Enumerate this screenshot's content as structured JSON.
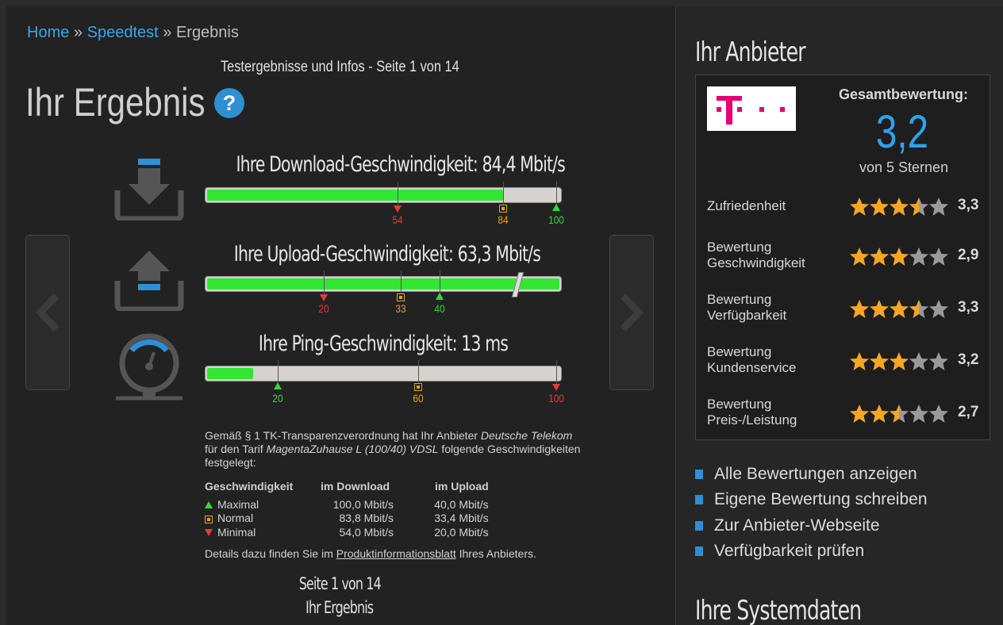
{
  "breadcrumb": {
    "home": "Home",
    "sep1": "»",
    "speedtest": "Speedtest",
    "sep2": "»",
    "current": "Ergebnis"
  },
  "page_info": "Testergebnisse und Infos - Seite 1 von 14",
  "heading": "Ihr Ergebnis",
  "help_label": "?",
  "metrics": {
    "download": {
      "title": "Ihre Download-Geschwindigkeit: 84,4 Mbit/s",
      "fill": 0.84,
      "markers": [
        {
          "label": "54",
          "pos": 0.54,
          "type": "min"
        },
        {
          "label": "84",
          "pos": 0.84,
          "type": "normal"
        },
        {
          "label": "100",
          "pos": 1.0,
          "type": "max"
        }
      ]
    },
    "upload": {
      "title": "Ihre Upload-Geschwindigkeit: 63,3 Mbit/s",
      "fill": 1.0,
      "markers": [
        {
          "label": "20",
          "pos": 0.33,
          "type": "min"
        },
        {
          "label": "33",
          "pos": 0.55,
          "type": "normal"
        },
        {
          "label": "40",
          "pos": 0.66,
          "type": "max"
        }
      ]
    },
    "ping": {
      "title": "Ihre Ping-Geschwindigkeit: 13 ms",
      "fill": 0.13,
      "markers": [
        {
          "label": "20",
          "pos": 0.2,
          "type": "max"
        },
        {
          "label": "60",
          "pos": 0.6,
          "type": "normal"
        },
        {
          "label": "100",
          "pos": 1.0,
          "type": "min"
        }
      ]
    }
  },
  "info": {
    "line1_pre": "Gemäß § 1 TK-Transparenzverordnung hat Ihr Anbieter ",
    "provider": "Deutsche Telekom",
    "line2_pre": "für den Tarif ",
    "tariff": "MagentaZuhause L (100/40) VDSL",
    "line2_post": " folgende Geschwindigkeiten festgelegt:"
  },
  "speed_table": {
    "headers": [
      "Geschwindigkeit",
      "im Download",
      "im Upload"
    ],
    "rows": [
      {
        "label": "Maximal",
        "download": "100,0 Mbit/s",
        "upload": "40,0 Mbit/s"
      },
      {
        "label": "Normal",
        "download": "83,8 Mbit/s",
        "upload": "33,4 Mbit/s"
      },
      {
        "label": "Minimal",
        "download": "54,0 Mbit/s",
        "upload": "20,0 Mbit/s"
      }
    ]
  },
  "details": {
    "pre": "Details dazu finden Sie im ",
    "link": "Produktinformationsblatt",
    "post": " Ihres Anbieters."
  },
  "pager": {
    "page": "Seite 1 von 14",
    "title": "Ihr Ergebnis"
  },
  "sidebar": {
    "provider_heading": "Ihr Anbieter",
    "total_label": "Gesamtbewertung:",
    "total_value": "3,2",
    "total_sub": "von 5 Sternen",
    "ratings": [
      {
        "label": "Zufriedenheit",
        "value": "3,3",
        "stars": 3.5
      },
      {
        "label": "Bewertung Geschwindigkeit",
        "value": "2,9",
        "stars": 3
      },
      {
        "label": "Bewertung Verfügbarkeit",
        "value": "3,3",
        "stars": 3.5
      },
      {
        "label": "Bewertung Kundenservice",
        "value": "3,2",
        "stars": 3
      },
      {
        "label": "Bewertung Preis-/Leistung",
        "value": "2,7",
        "stars": 2.5
      }
    ],
    "links": [
      "Alle Bewertungen anzeigen",
      "Eigene Bewertung schreiben",
      "Zur Anbieter-Webseite",
      "Verfügbarkeit prüfen"
    ],
    "system_heading": "Ihre Systemdaten"
  },
  "colors": {
    "accent": "#2ea3ec",
    "bar_fill": "#33e633",
    "telekom": "#e20074",
    "star": "#f6a623"
  }
}
